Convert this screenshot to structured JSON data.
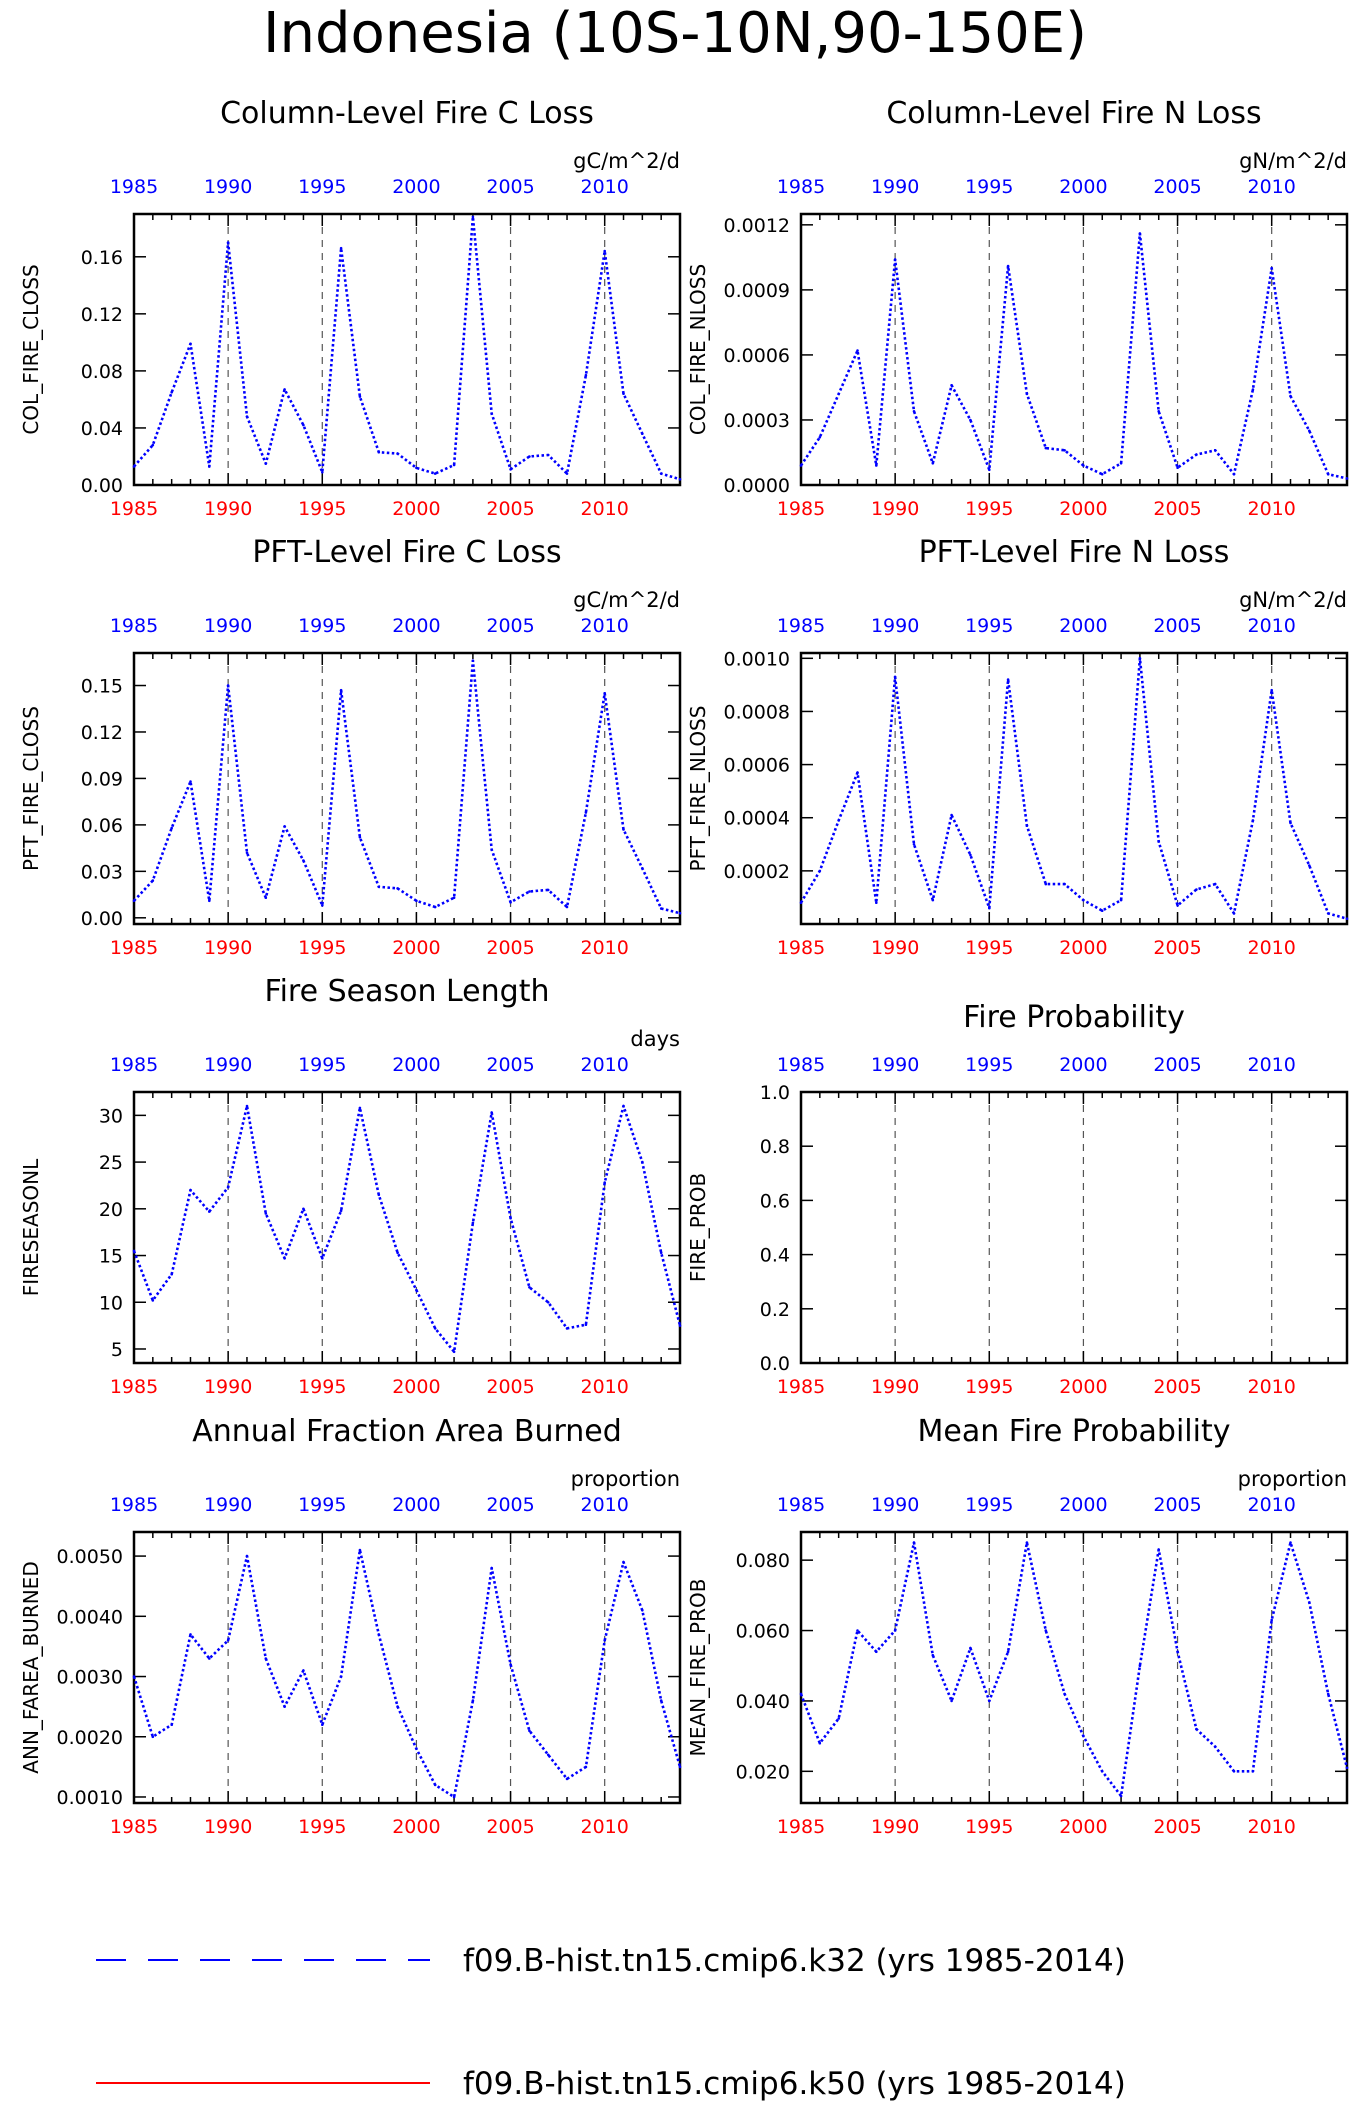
{
  "main_title": "Indonesia (10S-10N,90-150E)",
  "colors": {
    "case1": "#0000ff",
    "case2": "#ff0000",
    "bottom_ticks": "#ff0000",
    "top_ticks": "#0000ff",
    "vlines": "#555555"
  },
  "legend": [
    {
      "label": "f09.B-hist.tn15.cmip6.k32 (yrs 1985-2014)",
      "color": "#0000ff",
      "style": "dashed"
    },
    {
      "label": "f09.B-hist.tn15.cmip6.k50 (yrs 1985-2014)",
      "color": "#ff0000",
      "style": "solid"
    }
  ],
  "chart_data": [
    {
      "type": "line",
      "title": "Column-Level Fire C Loss",
      "units": "gC/m^2/d",
      "ylabel": "COL_FIRE_CLOSS",
      "xlim": [
        1985,
        2014
      ],
      "ylim": [
        0,
        0.19
      ],
      "yticks": [
        "0.00",
        "0.04",
        "0.08",
        "0.12",
        "0.16"
      ],
      "ytick_values": [
        0,
        0.04,
        0.08,
        0.12,
        0.16
      ],
      "xticks": [
        1985,
        1990,
        1995,
        2000,
        2005,
        2010
      ],
      "x": [
        1985,
        1986,
        1987,
        1988,
        1989,
        1990,
        1991,
        1992,
        1993,
        1994,
        1995,
        1996,
        1997,
        1998,
        1999,
        2000,
        2001,
        2002,
        2003,
        2004,
        2005,
        2006,
        2007,
        2008,
        2009,
        2010,
        2011,
        2012,
        2013,
        2014
      ],
      "series": [
        {
          "values": [
            0.013,
            0.028,
            0.065,
            0.099,
            0.013,
            0.17,
            0.048,
            0.015,
            0.067,
            0.042,
            0.009,
            0.166,
            0.062,
            0.023,
            0.022,
            0.012,
            0.008,
            0.014,
            0.188,
            0.05,
            0.011,
            0.02,
            0.021,
            0.008,
            0.077,
            0.164,
            0.064,
            0.036,
            0.008,
            0.004
          ]
        }
      ]
    },
    {
      "type": "line",
      "title": "Column-Level Fire N Loss",
      "units": "gN/m^2/d",
      "ylabel": "COL_FIRE_NLOSS",
      "xlim": [
        1985,
        2014
      ],
      "ylim": [
        0,
        0.00125
      ],
      "yticks": [
        "0.0000",
        "0.0003",
        "0.0006",
        "0.0009",
        "0.0012"
      ],
      "ytick_values": [
        0,
        0.0003,
        0.0006,
        0.0009,
        0.0012
      ],
      "xticks": [
        1985,
        1990,
        1995,
        2000,
        2005,
        2010
      ],
      "x": [
        1985,
        1986,
        1987,
        1988,
        1989,
        1990,
        1991,
        1992,
        1993,
        1994,
        1995,
        1996,
        1997,
        1998,
        1999,
        2000,
        2001,
        2002,
        2003,
        2004,
        2005,
        2006,
        2007,
        2008,
        2009,
        2010,
        2011,
        2012,
        2013,
        2014
      ],
      "series": [
        {
          "values": [
            9e-05,
            0.00022,
            0.00042,
            0.00062,
            9e-05,
            0.00104,
            0.00034,
            0.0001,
            0.00046,
            0.0003,
            7e-05,
            0.00101,
            0.00042,
            0.00017,
            0.00016,
            9e-05,
            5e-05,
            0.0001,
            0.00116,
            0.00034,
            8e-05,
            0.00014,
            0.00016,
            5e-05,
            0.00044,
            0.001,
            0.00041,
            0.00025,
            5e-05,
            3e-05
          ]
        }
      ]
    },
    {
      "type": "line",
      "title": "PFT-Level Fire C Loss",
      "units": "gC/m^2/d",
      "ylabel": "PFT_FIRE_CLOSS",
      "xlim": [
        1985,
        2014
      ],
      "ylim": [
        -0.004,
        0.171
      ],
      "yticks": [
        "0.00",
        "0.03",
        "0.06",
        "0.09",
        "0.12",
        "0.15"
      ],
      "ytick_values": [
        0,
        0.03,
        0.06,
        0.09,
        0.12,
        0.15
      ],
      "xticks": [
        1985,
        1990,
        1995,
        2000,
        2005,
        2010
      ],
      "x": [
        1985,
        1986,
        1987,
        1988,
        1989,
        1990,
        1991,
        1992,
        1993,
        1994,
        1995,
        1996,
        1997,
        1998,
        1999,
        2000,
        2001,
        2002,
        2003,
        2004,
        2005,
        2006,
        2007,
        2008,
        2009,
        2010,
        2011,
        2012,
        2013,
        2014
      ],
      "series": [
        {
          "values": [
            0.011,
            0.024,
            0.058,
            0.088,
            0.011,
            0.15,
            0.042,
            0.013,
            0.059,
            0.037,
            0.008,
            0.147,
            0.052,
            0.02,
            0.019,
            0.011,
            0.007,
            0.013,
            0.166,
            0.044,
            0.01,
            0.017,
            0.018,
            0.007,
            0.068,
            0.145,
            0.057,
            0.032,
            0.006,
            0.003
          ]
        }
      ]
    },
    {
      "type": "line",
      "title": "PFT-Level Fire N Loss",
      "units": "gN/m^2/d",
      "ylabel": "PFT_FIRE_NLOSS",
      "xlim": [
        1985,
        2014
      ],
      "ylim": [
        0,
        0.00102
      ],
      "yticks": [
        "0.0002",
        "0.0004",
        "0.0006",
        "0.0008",
        "0.0010"
      ],
      "ytick_values": [
        0.0002,
        0.0004,
        0.0006,
        0.0008,
        0.001
      ],
      "xticks": [
        1985,
        1990,
        1995,
        2000,
        2005,
        2010
      ],
      "x": [
        1985,
        1986,
        1987,
        1988,
        1989,
        1990,
        1991,
        1992,
        1993,
        1994,
        1995,
        1996,
        1997,
        1998,
        1999,
        2000,
        2001,
        2002,
        2003,
        2004,
        2005,
        2006,
        2007,
        2008,
        2009,
        2010,
        2011,
        2012,
        2013,
        2014
      ],
      "series": [
        {
          "values": [
            8e-05,
            0.0002,
            0.00039,
            0.00057,
            8e-05,
            0.00093,
            0.0003,
            9e-05,
            0.00041,
            0.00026,
            6e-05,
            0.00092,
            0.00037,
            0.00015,
            0.00015,
            9e-05,
            5e-05,
            9e-05,
            0.001,
            0.00031,
            7e-05,
            0.00013,
            0.00015,
            4e-05,
            0.00039,
            0.00088,
            0.00038,
            0.00022,
            4e-05,
            2e-05
          ]
        }
      ]
    },
    {
      "type": "line",
      "title": "Fire Season Length",
      "units": "days",
      "ylabel": "FIRESEASONL",
      "xlim": [
        1985,
        2014
      ],
      "ylim": [
        3.5,
        32.5
      ],
      "yticks": [
        "5",
        "10",
        "15",
        "20",
        "25",
        "30"
      ],
      "ytick_values": [
        5,
        10,
        15,
        20,
        25,
        30
      ],
      "xticks": [
        1985,
        1990,
        1995,
        2000,
        2005,
        2010
      ],
      "x": [
        1985,
        1986,
        1987,
        1988,
        1989,
        1990,
        1991,
        1992,
        1993,
        1994,
        1995,
        1996,
        1997,
        1998,
        1999,
        2000,
        2001,
        2002,
        2003,
        2004,
        2005,
        2006,
        2007,
        2008,
        2009,
        2010,
        2011,
        2012,
        2013,
        2014
      ],
      "series": [
        {
          "values": [
            15.5,
            10.2,
            13.0,
            22.0,
            19.7,
            22.3,
            31.0,
            19.5,
            14.7,
            20.0,
            14.7,
            19.8,
            30.8,
            21.5,
            15.3,
            11.3,
            7.2,
            4.7,
            18.5,
            30.3,
            19.0,
            11.6,
            10.0,
            7.2,
            7.6,
            22.8,
            31.0,
            25.0,
            15.3,
            7.5
          ]
        }
      ]
    },
    {
      "type": "line",
      "title": "Fire Probability",
      "units": "",
      "ylabel": "FIRE_PROB",
      "xlim": [
        1985,
        2014
      ],
      "ylim": [
        0,
        1.0
      ],
      "yticks": [
        "0.0",
        "0.2",
        "0.4",
        "0.6",
        "0.8",
        "1.0"
      ],
      "ytick_values": [
        0,
        0.2,
        0.4,
        0.6,
        0.8,
        1.0
      ],
      "xticks": [
        1985,
        1990,
        1995,
        2000,
        2005,
        2010
      ],
      "x": [],
      "series": []
    },
    {
      "type": "line",
      "title": "Annual Fraction Area Burned",
      "units": "proportion",
      "ylabel": "ANN_FAREA_BURNED",
      "xlim": [
        1985,
        2014
      ],
      "ylim": [
        0.0009,
        0.0054
      ],
      "yticks": [
        "0.0010",
        "0.0020",
        "0.0030",
        "0.0040",
        "0.0050"
      ],
      "ytick_values": [
        0.001,
        0.002,
        0.003,
        0.004,
        0.005
      ],
      "xticks": [
        1985,
        1990,
        1995,
        2000,
        2005,
        2010
      ],
      "x": [
        1985,
        1986,
        1987,
        1988,
        1989,
        1990,
        1991,
        1992,
        1993,
        1994,
        1995,
        1996,
        1997,
        1998,
        1999,
        2000,
        2001,
        2002,
        2003,
        2004,
        2005,
        2006,
        2007,
        2008,
        2009,
        2010,
        2011,
        2012,
        2013,
        2014
      ],
      "series": [
        {
          "values": [
            0.003,
            0.002,
            0.0022,
            0.0037,
            0.0033,
            0.0036,
            0.005,
            0.0033,
            0.0025,
            0.0031,
            0.0022,
            0.003,
            0.0051,
            0.0037,
            0.0025,
            0.0018,
            0.0012,
            0.001,
            0.0026,
            0.0048,
            0.0032,
            0.0021,
            0.0017,
            0.0013,
            0.0015,
            0.0036,
            0.0049,
            0.0041,
            0.0026,
            0.0015
          ]
        }
      ]
    },
    {
      "type": "line",
      "title": "Mean Fire Probability",
      "units": "proportion",
      "ylabel": "MEAN_FIRE_PROB",
      "xlim": [
        1985,
        2014
      ],
      "ylim": [
        0.011,
        0.088
      ],
      "yticks": [
        "0.020",
        "0.040",
        "0.060",
        "0.080"
      ],
      "ytick_values": [
        0.02,
        0.04,
        0.06,
        0.08
      ],
      "xticks": [
        1985,
        1990,
        1995,
        2000,
        2005,
        2010
      ],
      "x": [
        1985,
        1986,
        1987,
        1988,
        1989,
        1990,
        1991,
        1992,
        1993,
        1994,
        1995,
        1996,
        1997,
        1998,
        1999,
        2000,
        2001,
        2002,
        2003,
        2004,
        2005,
        2006,
        2007,
        2008,
        2009,
        2010,
        2011,
        2012,
        2013,
        2014
      ],
      "series": [
        {
          "values": [
            0.042,
            0.028,
            0.035,
            0.06,
            0.054,
            0.06,
            0.085,
            0.053,
            0.04,
            0.055,
            0.04,
            0.054,
            0.085,
            0.06,
            0.042,
            0.03,
            0.02,
            0.013,
            0.05,
            0.083,
            0.054,
            0.032,
            0.027,
            0.02,
            0.02,
            0.063,
            0.085,
            0.068,
            0.042,
            0.021
          ]
        }
      ]
    }
  ]
}
